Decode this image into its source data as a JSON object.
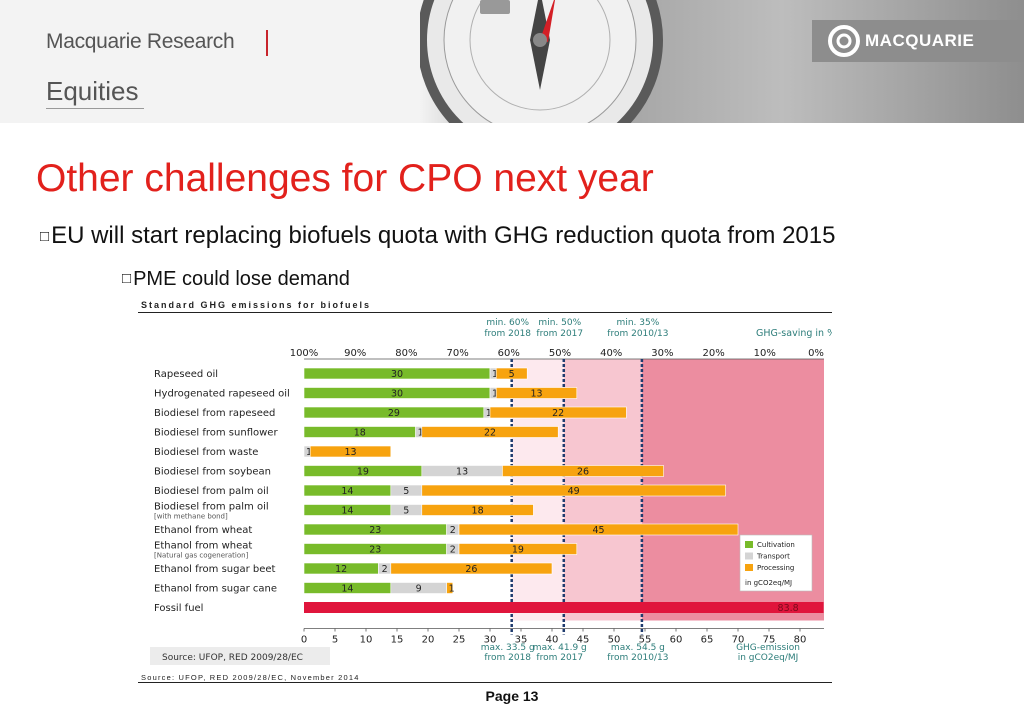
{
  "header": {
    "brand": "Macquarie Research",
    "division": "Equities",
    "logo": "MACQUARIE"
  },
  "slide": {
    "title": "Other challenges for CPO next year",
    "bullets": [
      {
        "glyph": "□",
        "text": "EU will start replacing biofuels quota with GHG reduction quota from 2015"
      },
      {
        "glyph": "□",
        "text": "PME could lose demand"
      }
    ],
    "page": "Page 13"
  },
  "chart_title": "Standard GHG emissions for biofuels",
  "chart_source": "Source: UFOP, RED 2009/28/EC, November 2014",
  "colors": {
    "cultivation": "#78bb2a",
    "transport": "#d4d4d4",
    "processing": "#f7a30f",
    "fossil": "#e0153c",
    "zone_light": "#fde9ee",
    "zone_mid": "#f7c6d0",
    "zone_dark": "#ec8da0"
  },
  "chart_data": {
    "type": "bar",
    "orientation": "horizontal-stacked",
    "top_axis_label": "GHG-saving in %",
    "top_ticks": [
      "100%",
      "90%",
      "80%",
      "70%",
      "60%",
      "50%",
      "40%",
      "30%",
      "20%",
      "10%",
      "0%"
    ],
    "bottom_axis_label": "GHG-emission in gCO2eq/MJ",
    "bottom_ticks": [
      "0",
      "5",
      "10",
      "15",
      "20",
      "25",
      "30",
      "35",
      "40",
      "45",
      "50",
      "55",
      "60",
      "65",
      "70",
      "75",
      "80"
    ],
    "xlim": [
      0,
      83.8
    ],
    "thresholds": [
      {
        "emission": 33.5,
        "top_label": "min. 60%\nfrom 2018",
        "bottom_label": "max. 33.5 g\nfrom 2018"
      },
      {
        "emission": 41.9,
        "top_label": "min. 50%\nfrom 2017",
        "bottom_label": "max. 41.9 g\nfrom 2017"
      },
      {
        "emission": 54.5,
        "top_label": "min. 35%\nfrom 2010/13",
        "bottom_label": "max. 54.5 g\nfrom 2010/13"
      }
    ],
    "series_names": [
      "Cultivation",
      "Transport",
      "Processing"
    ],
    "legend_unit": "in gCO2eq/MJ",
    "legend_position": "bottom-right",
    "inner_source": "Source: UFOP, RED 2009/28/EC",
    "categories": [
      {
        "name": "Rapeseed oil",
        "values": [
          30,
          1,
          5
        ]
      },
      {
        "name": "Hydrogenated rapeseed oil",
        "values": [
          30,
          1,
          13
        ]
      },
      {
        "name": "Biodiesel from rapeseed",
        "values": [
          29,
          1,
          22
        ]
      },
      {
        "name": "Biodiesel from sunflower",
        "values": [
          18,
          1,
          22
        ]
      },
      {
        "name": "Biodiesel from waste",
        "values": [
          0,
          1,
          13
        ]
      },
      {
        "name": "Biodiesel from soybean",
        "values": [
          19,
          13,
          26
        ]
      },
      {
        "name": "Biodiesel from palm oil",
        "values": [
          14,
          5,
          49
        ]
      },
      {
        "name": "Biodiesel from palm oil",
        "sub": "[with methane bond]",
        "values": [
          14,
          5,
          18
        ]
      },
      {
        "name": "Ethanol from wheat",
        "values": [
          23,
          2,
          45
        ]
      },
      {
        "name": "Ethanol from wheat",
        "sub": "[Natural gas cogeneration]",
        "values": [
          23,
          2,
          19
        ]
      },
      {
        "name": "Ethanol from sugar beet",
        "values": [
          12,
          2,
          26
        ]
      },
      {
        "name": "Ethanol from sugar cane",
        "values": [
          14,
          9,
          1
        ]
      },
      {
        "name": "Fossil fuel",
        "fossil": 83.8,
        "values": [
          0,
          0,
          0
        ]
      }
    ]
  }
}
